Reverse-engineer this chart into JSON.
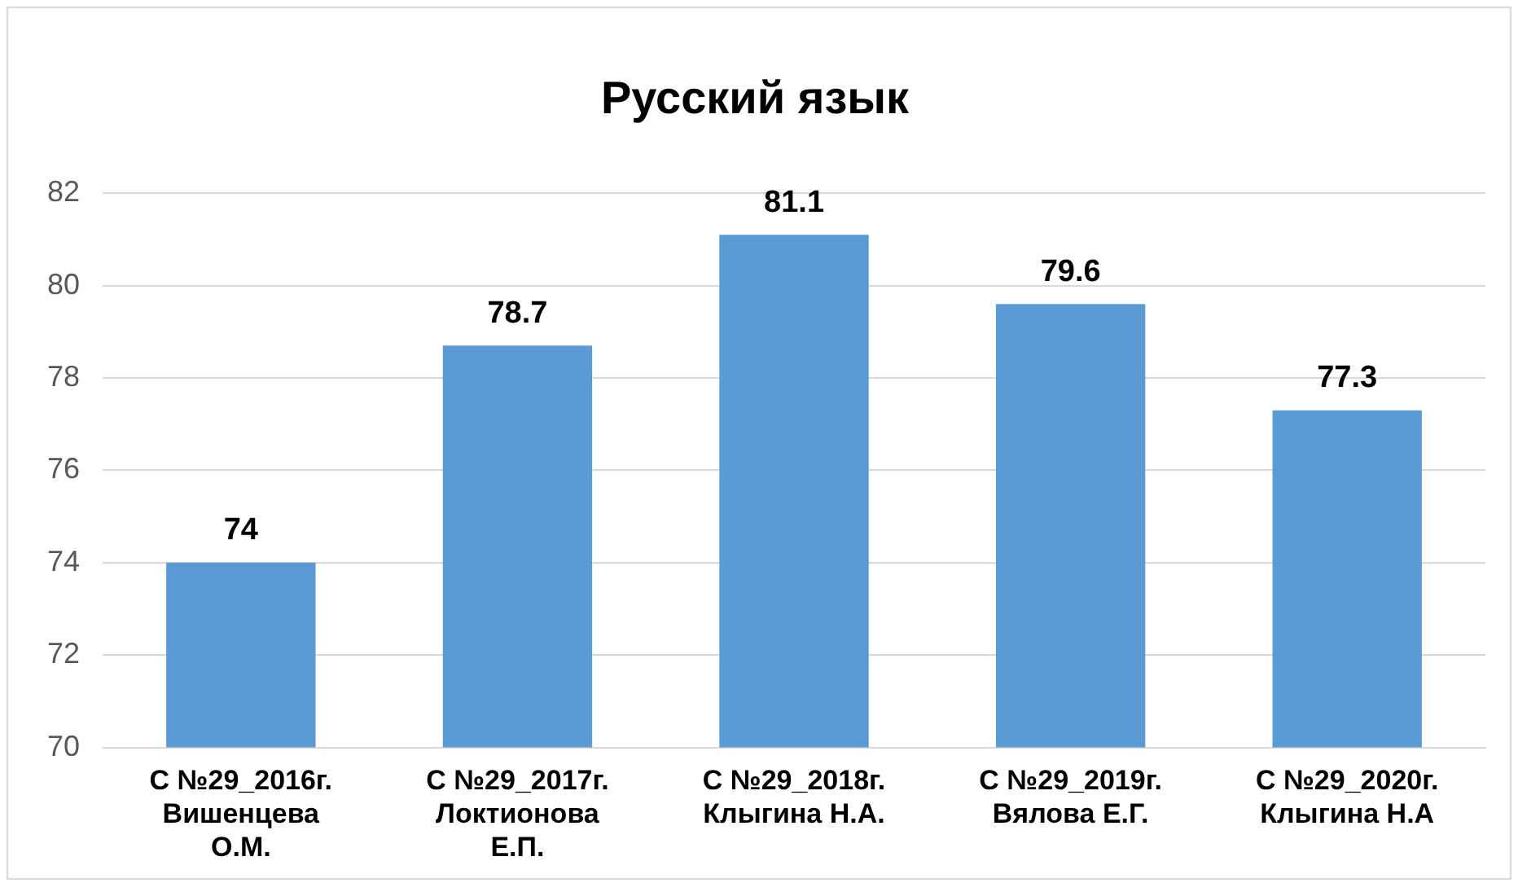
{
  "chart_data": {
    "type": "bar",
    "title": "Русский язык",
    "categories": [
      "С №29_2016г. Вишенцева О.М.",
      "С №29_2017г. Локтионова Е.П.",
      "С №29_2018г. Клыгина Н.А.",
      "С №29_2019г. Вялова Е.Г.",
      "С №29_2020г. Клыгина Н.А"
    ],
    "values": [
      74,
      78.7,
      81.1,
      79.6,
      77.3
    ],
    "color": "#5b9bd5",
    "ylim": [
      70,
      82
    ],
    "yticks": [
      70,
      72,
      74,
      76,
      78,
      80,
      82
    ],
    "grid": "y",
    "data_labels": true,
    "legend": false
  }
}
